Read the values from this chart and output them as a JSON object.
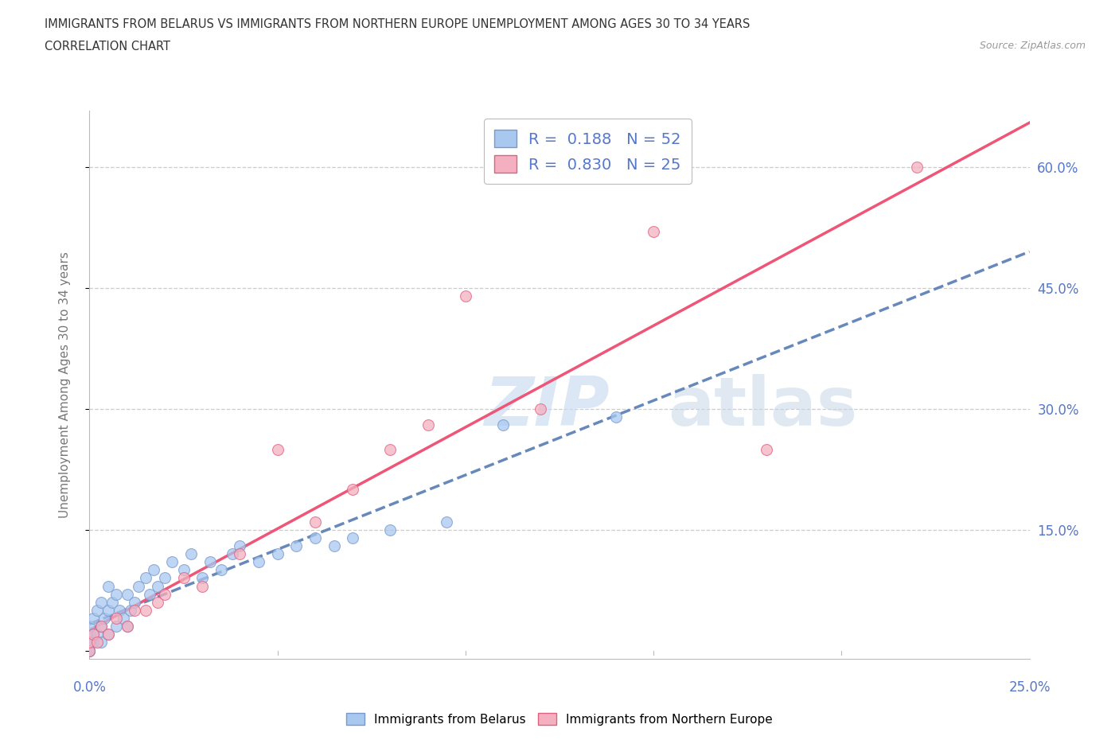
{
  "title_line1": "IMMIGRANTS FROM BELARUS VS IMMIGRANTS FROM NORTHERN EUROPE UNEMPLOYMENT AMONG AGES 30 TO 34 YEARS",
  "title_line2": "CORRELATION CHART",
  "source": "Source: ZipAtlas.com",
  "ylabel": "Unemployment Among Ages 30 to 34 years",
  "xlim": [
    0.0,
    0.25
  ],
  "ylim": [
    -0.01,
    0.67
  ],
  "color_belarus": "#a8c8f0",
  "color_belarus_edge": "#7799cc",
  "color_northern": "#f4b0c0",
  "color_northern_edge": "#e06080",
  "color_belarus_line": "#6688bb",
  "color_northern_line": "#ee5577",
  "ytick_vals": [
    0.0,
    0.15,
    0.3,
    0.45,
    0.6
  ],
  "ytick_labels_right": [
    "",
    "15.0%",
    "30.0%",
    "45.0%",
    "60.0%"
  ],
  "xtick_vals": [
    0.0,
    0.05,
    0.1,
    0.15,
    0.2,
    0.25
  ],
  "xtick_labels": [
    "0.0%",
    "",
    "",
    "",
    "",
    "25.0%"
  ],
  "belarus_x": [
    0.0,
    0.0,
    0.0,
    0.0,
    0.0,
    0.0,
    0.0,
    0.001,
    0.001,
    0.001,
    0.002,
    0.002,
    0.003,
    0.003,
    0.003,
    0.004,
    0.005,
    0.005,
    0.005,
    0.006,
    0.007,
    0.007,
    0.008,
    0.009,
    0.01,
    0.01,
    0.011,
    0.012,
    0.013,
    0.015,
    0.016,
    0.017,
    0.018,
    0.02,
    0.022,
    0.025,
    0.027,
    0.03,
    0.032,
    0.035,
    0.038,
    0.04,
    0.045,
    0.05,
    0.055,
    0.06,
    0.065,
    0.07,
    0.08,
    0.095,
    0.11,
    0.14
  ],
  "belarus_y": [
    0.0,
    0.0,
    0.0,
    0.01,
    0.01,
    0.02,
    0.03,
    0.01,
    0.02,
    0.04,
    0.02,
    0.05,
    0.01,
    0.03,
    0.06,
    0.04,
    0.02,
    0.05,
    0.08,
    0.06,
    0.03,
    0.07,
    0.05,
    0.04,
    0.03,
    0.07,
    0.05,
    0.06,
    0.08,
    0.09,
    0.07,
    0.1,
    0.08,
    0.09,
    0.11,
    0.1,
    0.12,
    0.09,
    0.11,
    0.1,
    0.12,
    0.13,
    0.11,
    0.12,
    0.13,
    0.14,
    0.13,
    0.14,
    0.15,
    0.16,
    0.28,
    0.29
  ],
  "northern_x": [
    0.0,
    0.0,
    0.001,
    0.002,
    0.003,
    0.005,
    0.007,
    0.01,
    0.012,
    0.015,
    0.018,
    0.02,
    0.025,
    0.03,
    0.04,
    0.05,
    0.06,
    0.07,
    0.08,
    0.09,
    0.1,
    0.12,
    0.15,
    0.18,
    0.22
  ],
  "northern_y": [
    0.0,
    0.01,
    0.02,
    0.01,
    0.03,
    0.02,
    0.04,
    0.03,
    0.05,
    0.05,
    0.06,
    0.07,
    0.09,
    0.08,
    0.12,
    0.25,
    0.16,
    0.2,
    0.25,
    0.28,
    0.44,
    0.3,
    0.52,
    0.25,
    0.6
  ],
  "watermark_zip": "ZIP",
  "watermark_atlas": "atlas"
}
